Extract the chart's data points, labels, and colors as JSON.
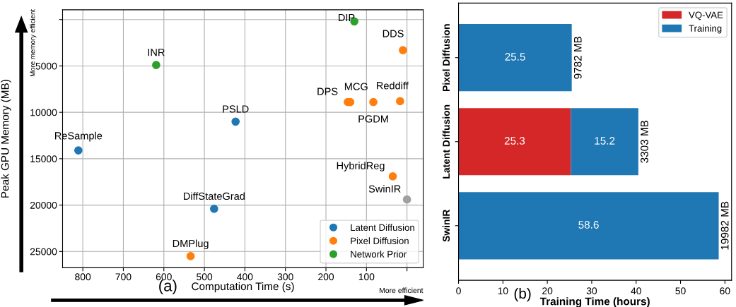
{
  "chart_data": [
    {
      "type": "scatter",
      "xlabel": "Computation Time (s)",
      "ylabel": "Peak GPU Memory (MB)",
      "xlim": [
        850,
        -40
      ],
      "ylim": [
        26750,
        -1050
      ],
      "xticks": [
        {
          "value": 0,
          "label": null
        },
        100,
        200,
        300,
        400,
        500,
        600,
        700,
        800
      ],
      "yticks": [
        {
          "value": 0,
          "label": null
        },
        5000,
        10000,
        15000,
        20000,
        25000
      ],
      "grid": true,
      "legend": "bottom right",
      "marker": "circle",
      "series": [
        {
          "name": "Latent Diffusion",
          "color": "#1f77b4",
          "x": [
            423,
            811,
            476
          ],
          "values": [
            11000,
            14100,
            20400
          ]
        },
        {
          "name": "Pixel Diffusion",
          "color": "#ff7f0e",
          "x": [
            10,
            146,
            140,
            83,
            17,
            35,
            534
          ],
          "values": [
            3300,
            8900,
            8900,
            8900,
            8800,
            16900,
            25500
          ]
        },
        {
          "name": "Network Prior",
          "color": "#2ca02c",
          "x": [
            130,
            619
          ],
          "values": [
            200,
            4900
          ]
        },
        {
          "color": "#a0a0a0",
          "x": [
            0
          ],
          "values": [
            19400
          ]
        }
      ],
      "annotations": [
        {
          "text": "DIP",
          "x": 130,
          "y": 200
        },
        {
          "text": "DDS",
          "x": 10,
          "y": 3300
        },
        {
          "text": "INR",
          "x": 619,
          "y": 4900
        },
        {
          "text": "DPS",
          "x": 146,
          "y": 8900
        },
        {
          "text": "MCG",
          "x": 140,
          "y": 8900
        },
        {
          "text": "PGDM",
          "x": 83,
          "y": 8900
        },
        {
          "text": "Reddiff",
          "x": 17,
          "y": 8800
        },
        {
          "text": "PSLD",
          "x": 423,
          "y": 11000
        },
        {
          "text": "ReSample",
          "x": 811,
          "y": 14100
        },
        {
          "text": "HybridReg",
          "x": 35,
          "y": 16900
        },
        {
          "text": "SwinIR",
          "x": 0,
          "y": 19400
        },
        {
          "text": "DiffStateGrad",
          "x": 476,
          "y": 20400
        },
        {
          "text": "DMPlug",
          "x": 534,
          "y": 25500
        },
        "(a)",
        "More memory efficient",
        "More efficient"
      ]
    },
    {
      "type": "bar",
      "orientation": "horizontal",
      "stacked": true,
      "xlabel": "Training Time (hours)",
      "categories": [
        "Pixel Diffusion",
        "Latent Diffusion",
        "SwinIR"
      ],
      "xlim": [
        0,
        61.5
      ],
      "xticks": [
        0,
        10,
        20,
        30,
        40,
        50,
        60
      ],
      "grid": false,
      "legend": "top right",
      "data_labels": true,
      "series": [
        {
          "name": "VQ-VAE",
          "color": "#d62728",
          "values": [
            null,
            25.3,
            null
          ]
        },
        {
          "name": "Training",
          "color": "#1f77b4",
          "values": [
            25.5,
            15.2,
            58.6
          ]
        }
      ],
      "annotations": [
        {
          "text": "9782 MB",
          "x": 25.5,
          "y": "Pixel Diffusion"
        },
        {
          "text": "3303 MB",
          "x": 40.5,
          "y": "Latent Diffusion"
        },
        {
          "text": "19982 MB",
          "x": 58.6,
          "y": "SwinIR"
        },
        "(b)"
      ]
    }
  ]
}
